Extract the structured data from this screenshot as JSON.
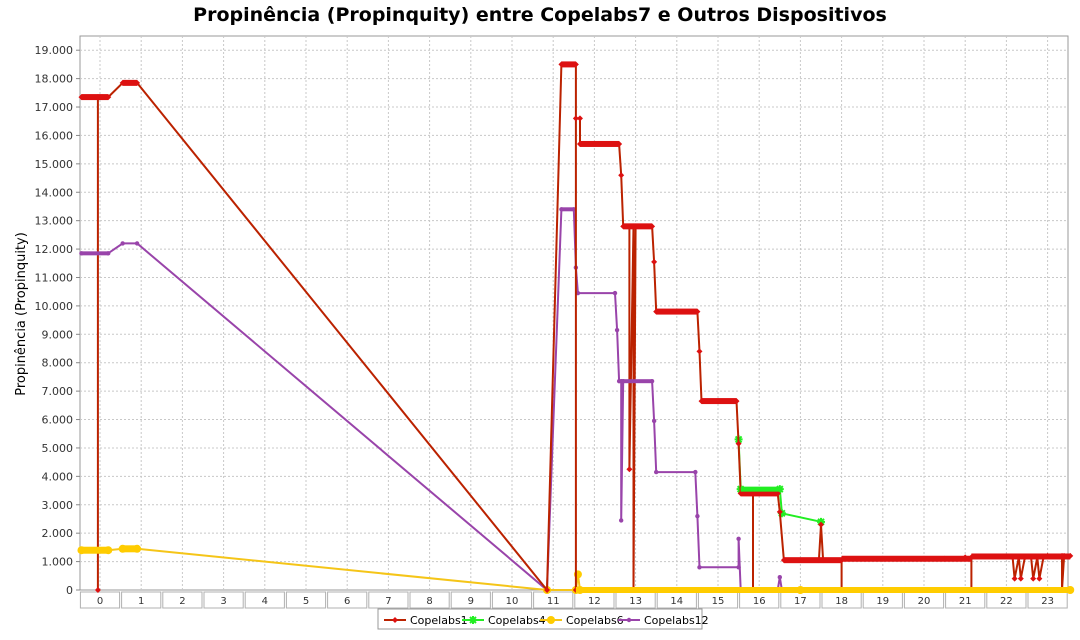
{
  "chart_data": {
    "type": "line",
    "title": "Propinência (Propinquity) entre Copelabs7 e Outros Dispositivos",
    "xlabel": "",
    "ylabel": "Propinência (Propinquity)",
    "ylim": [
      0,
      19500
    ],
    "y_ticks": [
      0,
      1000,
      2000,
      3000,
      4000,
      5000,
      6000,
      7000,
      8000,
      9000,
      10000,
      11000,
      12000,
      13000,
      14000,
      15000,
      16000,
      17000,
      18000,
      19000
    ],
    "y_tick_labels": [
      "0",
      "1.000",
      "2.000",
      "3.000",
      "4.000",
      "5.000",
      "6.000",
      "7.000",
      "8.000",
      "9.000",
      "10.000",
      "11.000",
      "12.000",
      "13.000",
      "14.000",
      "15.000",
      "16.000",
      "17.000",
      "18.000",
      "19.000"
    ],
    "categories": [
      "0",
      "1",
      "2",
      "3",
      "4",
      "5",
      "6",
      "7",
      "8",
      "9",
      "10",
      "11",
      "12",
      "13",
      "14",
      "15",
      "16",
      "17",
      "18",
      "19",
      "20",
      "21",
      "22",
      "23"
    ],
    "grid": true,
    "legend_position": "bottom",
    "series": [
      {
        "name": "Copelabs1",
        "color": "#dd1111",
        "line_color": "#bb2200",
        "marker": "diamond",
        "points": [
          [
            -0.45,
            17350
          ],
          [
            -0.05,
            17350
          ],
          [
            -0.05,
            0
          ],
          [
            -0.05,
            17350
          ],
          [
            0.05,
            17350
          ],
          [
            0.2,
            17350
          ],
          [
            0.55,
            17850
          ],
          [
            0.9,
            17850
          ],
          [
            10.85,
            0
          ],
          [
            11.2,
            18500
          ],
          [
            11.55,
            18500
          ],
          [
            11.55,
            0
          ],
          [
            11.55,
            16600
          ],
          [
            11.65,
            16600
          ],
          [
            11.65,
            15700
          ],
          [
            12.6,
            15700
          ],
          [
            12.65,
            14600
          ],
          [
            12.7,
            12800
          ],
          [
            12.85,
            12800
          ],
          [
            12.85,
            4250
          ],
          [
            12.95,
            12800
          ],
          [
            12.95,
            0
          ],
          [
            13.0,
            12800
          ],
          [
            13.4,
            12800
          ],
          [
            13.45,
            11550
          ],
          [
            13.5,
            9800
          ],
          [
            14.5,
            9800
          ],
          [
            14.55,
            8400
          ],
          [
            14.6,
            6650
          ],
          [
            15.45,
            6650
          ],
          [
            15.5,
            5150
          ],
          [
            15.55,
            3400
          ],
          [
            15.85,
            3400
          ],
          [
            15.85,
            0
          ],
          [
            15.85,
            3400
          ],
          [
            16.45,
            3400
          ],
          [
            16.5,
            2750
          ],
          [
            16.6,
            1050
          ],
          [
            17.45,
            1050
          ],
          [
            17.5,
            2300
          ],
          [
            17.55,
            1050
          ],
          [
            18.0,
            1050
          ],
          [
            18.0,
            0
          ],
          [
            18.0,
            1050
          ],
          [
            19.0,
            1100
          ],
          [
            20.0,
            1100
          ],
          [
            20.5,
            1100
          ],
          [
            21.0,
            1150
          ],
          [
            21.15,
            1150
          ],
          [
            21.15,
            0
          ],
          [
            21.15,
            1150
          ],
          [
            22.15,
            1150
          ],
          [
            22.2,
            400
          ],
          [
            22.3,
            1150
          ],
          [
            22.35,
            400
          ],
          [
            22.45,
            1150
          ],
          [
            22.6,
            1150
          ],
          [
            22.65,
            400
          ],
          [
            22.75,
            1150
          ],
          [
            22.8,
            400
          ],
          [
            22.9,
            1150
          ],
          [
            23.0,
            1200
          ],
          [
            23.35,
            1200
          ],
          [
            23.35,
            0
          ],
          [
            23.4,
            1200
          ],
          [
            23.55,
            1200
          ]
        ]
      },
      {
        "name": "Copelabs4",
        "color": "#22ee22",
        "line_color": "#22ee22",
        "marker": "cross",
        "points": [
          [
            15.5,
            5300
          ],
          [
            15.55,
            3550
          ],
          [
            16.5,
            3550
          ],
          [
            16.55,
            2700
          ],
          [
            17.5,
            2400
          ]
        ]
      },
      {
        "name": "Copelabs6",
        "color": "#ffcc00",
        "line_color": "#f5c518",
        "marker": "circle",
        "points": [
          [
            -0.45,
            1400
          ],
          [
            0.2,
            1400
          ],
          [
            0.55,
            1450
          ],
          [
            0.9,
            1450
          ],
          [
            10.85,
            0
          ],
          [
            11.55,
            0
          ],
          [
            11.6,
            550
          ],
          [
            11.65,
            0
          ],
          [
            17.0,
            0
          ],
          [
            23.55,
            0
          ]
        ]
      },
      {
        "name": "Copelabs12",
        "color": "#9944aa",
        "line_color": "#9944aa",
        "marker": "small-circle",
        "points": [
          [
            -0.45,
            11850
          ],
          [
            0.2,
            11850
          ],
          [
            0.55,
            12200
          ],
          [
            0.9,
            12200
          ],
          [
            10.85,
            0
          ],
          [
            11.2,
            13400
          ],
          [
            11.5,
            13400
          ],
          [
            11.55,
            11350
          ],
          [
            11.6,
            10450
          ],
          [
            12.5,
            10450
          ],
          [
            12.55,
            9150
          ],
          [
            12.6,
            7350
          ],
          [
            12.65,
            7350
          ],
          [
            12.65,
            2450
          ],
          [
            12.7,
            7350
          ],
          [
            13.4,
            7350
          ],
          [
            13.45,
            5950
          ],
          [
            13.5,
            4150
          ],
          [
            14.45,
            4150
          ],
          [
            14.5,
            2600
          ],
          [
            14.55,
            800
          ],
          [
            15.5,
            800
          ],
          [
            15.5,
            1800
          ],
          [
            15.55,
            0
          ],
          [
            16.45,
            0
          ],
          [
            16.5,
            450
          ],
          [
            16.55,
            0
          ]
        ]
      }
    ]
  }
}
